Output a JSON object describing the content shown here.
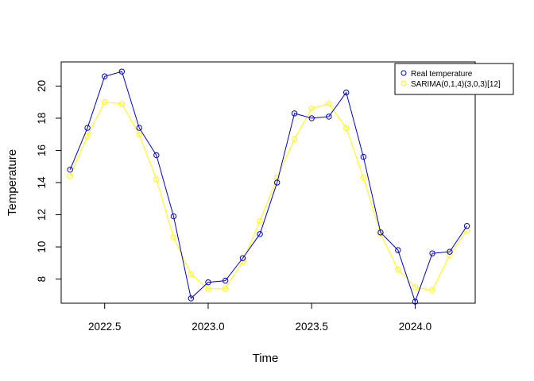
{
  "chart_data": {
    "type": "line",
    "title": "",
    "xlabel": "Time",
    "ylabel": "Temperature",
    "xlim": [
      2022.29,
      2024.29
    ],
    "ylim": [
      6.5,
      21.5
    ],
    "x_ticks": [
      "2022.5",
      "2023.0",
      "2023.5",
      "2024.0"
    ],
    "x_tick_values": [
      2022.5,
      2023.0,
      2023.5,
      2024.0
    ],
    "y_ticks": [
      "8",
      "10",
      "12",
      "14",
      "16",
      "18",
      "20"
    ],
    "y_tick_values": [
      8,
      10,
      12,
      14,
      16,
      18,
      20
    ],
    "grid": false,
    "legend_position": "top-right",
    "x": [
      2022.333,
      2022.417,
      2022.5,
      2022.583,
      2022.667,
      2022.75,
      2022.833,
      2022.917,
      2023.0,
      2023.083,
      2023.167,
      2023.25,
      2023.333,
      2023.417,
      2023.5,
      2023.583,
      2023.667,
      2023.75,
      2023.833,
      2023.917,
      2024.0,
      2024.083,
      2024.167,
      2024.25
    ],
    "series": [
      {
        "name": "Real temperature",
        "color": "#0000CD",
        "marker": "circle",
        "values": [
          14.8,
          17.4,
          20.6,
          20.9,
          17.4,
          15.7,
          11.9,
          6.8,
          7.8,
          7.9,
          9.3,
          10.8,
          14.0,
          18.3,
          18.0,
          18.1,
          19.6,
          15.6,
          10.9,
          9.8,
          6.6,
          9.6,
          9.7,
          11.3
        ]
      },
      {
        "name": "SARIMA(0,1,4)(3,0,3)[12]",
        "color": "#FFFF00",
        "marker": "circle",
        "values": [
          14.4,
          16.9,
          19.0,
          18.9,
          17.0,
          14.2,
          10.6,
          8.3,
          7.4,
          7.4,
          9.1,
          11.6,
          14.3,
          16.7,
          18.6,
          18.9,
          17.4,
          14.3,
          10.8,
          8.6,
          7.5,
          7.3,
          9.5,
          11.0
        ]
      }
    ]
  }
}
